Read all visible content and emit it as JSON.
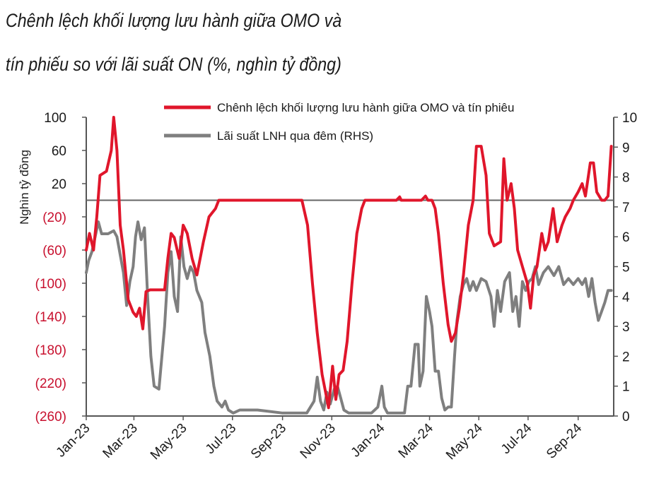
{
  "title_line1": "Chênh lệch khối lượng lưu hành giữa OMO và",
  "title_line2": "tín phiếu so với lãi suất ON (%, nghìn tỷ đồng)",
  "chart_data": {
    "type": "line",
    "ylabel": "Nghìn tỷ đồng",
    "ylim": [
      -260,
      100
    ],
    "y2lim": [
      0,
      10
    ],
    "yticks": [
      "100",
      "60",
      "20",
      "(20)",
      "(60)",
      "(100)",
      "(140)",
      "(180)",
      "(220)",
      "(260)"
    ],
    "ytick_values": [
      100,
      60,
      20,
      -20,
      -60,
      -100,
      -140,
      -180,
      -220,
      -260
    ],
    "y2ticks": [
      "10",
      "9",
      "8",
      "7",
      "6",
      "5",
      "4",
      "3",
      "2",
      "1",
      "0"
    ],
    "y2tick_values": [
      10,
      9,
      8,
      7,
      6,
      5,
      4,
      3,
      2,
      1,
      0
    ],
    "x_range": [
      "2023-01-01",
      "2024-10-15"
    ],
    "xticks": [
      "Jan-23",
      "Mar-23",
      "May-23",
      "Jul-23",
      "Sep-23",
      "Nov-23",
      "Jan-24",
      "Mar-24",
      "May-24",
      "Jul-24",
      "Sep-24"
    ],
    "xtick_dates": [
      "2023-01-01",
      "2023-03-01",
      "2023-05-01",
      "2023-07-01",
      "2023-09-01",
      "2023-11-01",
      "2024-01-01",
      "2024-03-01",
      "2024-05-01",
      "2024-07-01",
      "2024-09-01"
    ],
    "legend_position": "top",
    "grid": false,
    "series": [
      {
        "name": "Chênh lệch khối lượng lưu hành giữa OMO và tín phiêu",
        "axis": "left",
        "color": "#e0162b",
        "points": [
          [
            "2023-01-01",
            -60
          ],
          [
            "2023-01-05",
            -40
          ],
          [
            "2023-01-10",
            -60
          ],
          [
            "2023-01-14",
            -20
          ],
          [
            "2023-01-18",
            30
          ],
          [
            "2023-01-26",
            35
          ],
          [
            "2023-02-01",
            60
          ],
          [
            "2023-02-04",
            100
          ],
          [
            "2023-02-08",
            60
          ],
          [
            "2023-02-12",
            -30
          ],
          [
            "2023-02-16",
            -60
          ],
          [
            "2023-02-22",
            -120
          ],
          [
            "2023-02-28",
            -135
          ],
          [
            "2023-03-04",
            -140
          ],
          [
            "2023-03-08",
            -130
          ],
          [
            "2023-03-12",
            -155
          ],
          [
            "2023-03-16",
            -110
          ],
          [
            "2023-03-21",
            -108
          ],
          [
            "2023-04-01",
            -108
          ],
          [
            "2023-04-08",
            -108
          ],
          [
            "2023-04-12",
            -70
          ],
          [
            "2023-04-16",
            -40
          ],
          [
            "2023-04-20",
            -45
          ],
          [
            "2023-04-26",
            -70
          ],
          [
            "2023-05-01",
            -30
          ],
          [
            "2023-05-06",
            -40
          ],
          [
            "2023-05-12",
            -70
          ],
          [
            "2023-05-18",
            -90
          ],
          [
            "2023-05-26",
            -50
          ],
          [
            "2023-06-02",
            -20
          ],
          [
            "2023-06-10",
            -10
          ],
          [
            "2023-06-14",
            0
          ],
          [
            "2023-07-01",
            0
          ],
          [
            "2023-08-01",
            0
          ],
          [
            "2023-09-01",
            0
          ],
          [
            "2023-09-25",
            0
          ],
          [
            "2023-10-02",
            -30
          ],
          [
            "2023-10-08",
            -100
          ],
          [
            "2023-10-14",
            -160
          ],
          [
            "2023-10-20",
            -210
          ],
          [
            "2023-10-24",
            -230
          ],
          [
            "2023-10-28",
            -250
          ],
          [
            "2023-11-02",
            -200
          ],
          [
            "2023-11-06",
            -240
          ],
          [
            "2023-11-10",
            -210
          ],
          [
            "2023-11-15",
            -205
          ],
          [
            "2023-11-20",
            -170
          ],
          [
            "2023-11-26",
            -100
          ],
          [
            "2023-12-02",
            -40
          ],
          [
            "2023-12-08",
            -10
          ],
          [
            "2023-12-12",
            0
          ],
          [
            "2024-01-01",
            0
          ],
          [
            "2024-01-20",
            0
          ],
          [
            "2024-01-24",
            4
          ],
          [
            "2024-01-26",
            0
          ],
          [
            "2024-02-10",
            0
          ],
          [
            "2024-02-20",
            0
          ],
          [
            "2024-02-25",
            5
          ],
          [
            "2024-02-28",
            0
          ],
          [
            "2024-03-04",
            0
          ],
          [
            "2024-03-08",
            -10
          ],
          [
            "2024-03-12",
            -40
          ],
          [
            "2024-03-18",
            -100
          ],
          [
            "2024-03-24",
            -150
          ],
          [
            "2024-03-28",
            -170
          ],
          [
            "2024-04-02",
            -160
          ],
          [
            "2024-04-07",
            -130
          ],
          [
            "2024-04-12",
            -90
          ],
          [
            "2024-04-18",
            -30
          ],
          [
            "2024-04-24",
            0
          ],
          [
            "2024-04-28",
            65
          ],
          [
            "2024-05-04",
            65
          ],
          [
            "2024-05-10",
            30
          ],
          [
            "2024-05-14",
            -40
          ],
          [
            "2024-05-20",
            -55
          ],
          [
            "2024-05-28",
            -50
          ],
          [
            "2024-06-01",
            50
          ],
          [
            "2024-06-05",
            0
          ],
          [
            "2024-06-10",
            20
          ],
          [
            "2024-06-14",
            -10
          ],
          [
            "2024-06-18",
            -60
          ],
          [
            "2024-06-24",
            -80
          ],
          [
            "2024-06-30",
            -100
          ],
          [
            "2024-07-04",
            -130
          ],
          [
            "2024-07-08",
            -90
          ],
          [
            "2024-07-12",
            -80
          ],
          [
            "2024-07-18",
            -40
          ],
          [
            "2024-07-22",
            -60
          ],
          [
            "2024-07-26",
            -50
          ],
          [
            "2024-08-01",
            -10
          ],
          [
            "2024-08-06",
            -50
          ],
          [
            "2024-08-12",
            -30
          ],
          [
            "2024-08-16",
            -20
          ],
          [
            "2024-08-22",
            -10
          ],
          [
            "2024-08-26",
            0
          ],
          [
            "2024-09-01",
            10
          ],
          [
            "2024-09-06",
            20
          ],
          [
            "2024-09-10",
            5
          ],
          [
            "2024-09-16",
            45
          ],
          [
            "2024-09-20",
            45
          ],
          [
            "2024-09-24",
            10
          ],
          [
            "2024-09-30",
            0
          ],
          [
            "2024-10-04",
            0
          ],
          [
            "2024-10-08",
            5
          ],
          [
            "2024-10-12",
            65
          ]
        ]
      },
      {
        "name": "Lãi suất LNH qua đêm (RHS)",
        "axis": "right",
        "color": "#7f7f7f",
        "points": [
          [
            "2023-01-01",
            4.8
          ],
          [
            "2023-01-04",
            5.2
          ],
          [
            "2023-01-08",
            5.5
          ],
          [
            "2023-01-12",
            6.0
          ],
          [
            "2023-01-16",
            6.5
          ],
          [
            "2023-01-20",
            6.1
          ],
          [
            "2023-01-28",
            6.1
          ],
          [
            "2023-02-04",
            6.2
          ],
          [
            "2023-02-08",
            6.0
          ],
          [
            "2023-02-12",
            5.4
          ],
          [
            "2023-02-16",
            4.8
          ],
          [
            "2023-02-20",
            3.7
          ],
          [
            "2023-02-24",
            4.5
          ],
          [
            "2023-02-28",
            5.0
          ],
          [
            "2023-03-03",
            6.0
          ],
          [
            "2023-03-06",
            6.5
          ],
          [
            "2023-03-10",
            5.9
          ],
          [
            "2023-03-14",
            6.3
          ],
          [
            "2023-03-18",
            4.0
          ],
          [
            "2023-03-22",
            2.0
          ],
          [
            "2023-03-26",
            1.0
          ],
          [
            "2023-04-01",
            0.9
          ],
          [
            "2023-04-08",
            3.0
          ],
          [
            "2023-04-12",
            4.8
          ],
          [
            "2023-04-16",
            5.5
          ],
          [
            "2023-04-20",
            4.0
          ],
          [
            "2023-04-24",
            3.5
          ],
          [
            "2023-04-28",
            6.0
          ],
          [
            "2023-05-02",
            5.0
          ],
          [
            "2023-05-06",
            4.6
          ],
          [
            "2023-05-10",
            5.0
          ],
          [
            "2023-05-14",
            4.8
          ],
          [
            "2023-05-18",
            4.2
          ],
          [
            "2023-05-24",
            3.8
          ],
          [
            "2023-05-28",
            2.8
          ],
          [
            "2023-06-03",
            2.0
          ],
          [
            "2023-06-08",
            1.0
          ],
          [
            "2023-06-12",
            0.5
          ],
          [
            "2023-06-18",
            0.3
          ],
          [
            "2023-06-22",
            0.5
          ],
          [
            "2023-06-26",
            0.2
          ],
          [
            "2023-07-02",
            0.1
          ],
          [
            "2023-07-10",
            0.2
          ],
          [
            "2023-08-01",
            0.2
          ],
          [
            "2023-09-01",
            0.1
          ],
          [
            "2023-10-01",
            0.1
          ],
          [
            "2023-10-10",
            0.5
          ],
          [
            "2023-10-14",
            1.3
          ],
          [
            "2023-10-18",
            0.5
          ],
          [
            "2023-10-22",
            0.2
          ],
          [
            "2023-10-26",
            0.8
          ],
          [
            "2023-10-30",
            0.4
          ],
          [
            "2023-11-04",
            0.9
          ],
          [
            "2023-11-08",
            1.0
          ],
          [
            "2023-11-12",
            0.6
          ],
          [
            "2023-11-16",
            0.2
          ],
          [
            "2023-11-22",
            0.1
          ],
          [
            "2023-12-01",
            0.1
          ],
          [
            "2023-12-20",
            0.1
          ],
          [
            "2023-12-28",
            0.3
          ],
          [
            "2024-01-02",
            1.0
          ],
          [
            "2024-01-05",
            0.3
          ],
          [
            "2024-01-09",
            0.1
          ],
          [
            "2024-01-30",
            0.1
          ],
          [
            "2024-02-03",
            1.0
          ],
          [
            "2024-02-07",
            1.0
          ],
          [
            "2024-02-12",
            2.4
          ],
          [
            "2024-02-16",
            2.4
          ],
          [
            "2024-02-18",
            1.0
          ],
          [
            "2024-02-22",
            1.5
          ],
          [
            "2024-02-26",
            4.0
          ],
          [
            "2024-03-01",
            3.5
          ],
          [
            "2024-03-04",
            3.0
          ],
          [
            "2024-03-08",
            1.5
          ],
          [
            "2024-03-12",
            1.5
          ],
          [
            "2024-03-16",
            0.6
          ],
          [
            "2024-03-20",
            0.2
          ],
          [
            "2024-03-24",
            0.3
          ],
          [
            "2024-03-28",
            0.3
          ],
          [
            "2024-04-01",
            2.0
          ],
          [
            "2024-04-04",
            3.2
          ],
          [
            "2024-04-08",
            4.0
          ],
          [
            "2024-04-12",
            4.4
          ],
          [
            "2024-04-16",
            4.6
          ],
          [
            "2024-04-20",
            4.2
          ],
          [
            "2024-04-24",
            4.5
          ],
          [
            "2024-04-28",
            4.2
          ],
          [
            "2024-05-04",
            4.6
          ],
          [
            "2024-05-10",
            4.5
          ],
          [
            "2024-05-16",
            4.0
          ],
          [
            "2024-05-20",
            3.0
          ],
          [
            "2024-05-24",
            4.2
          ],
          [
            "2024-05-28",
            3.5
          ],
          [
            "2024-06-02",
            4.5
          ],
          [
            "2024-06-08",
            4.8
          ],
          [
            "2024-06-12",
            3.5
          ],
          [
            "2024-06-16",
            4.0
          ],
          [
            "2024-06-20",
            3.0
          ],
          [
            "2024-06-24",
            4.5
          ],
          [
            "2024-06-28",
            4.2
          ],
          [
            "2024-07-02",
            4.5
          ],
          [
            "2024-07-06",
            4.6
          ],
          [
            "2024-07-10",
            5.0
          ],
          [
            "2024-07-14",
            4.4
          ],
          [
            "2024-07-20",
            4.8
          ],
          [
            "2024-07-26",
            5.0
          ],
          [
            "2024-08-02",
            4.7
          ],
          [
            "2024-08-08",
            5.0
          ],
          [
            "2024-08-14",
            4.4
          ],
          [
            "2024-08-20",
            4.6
          ],
          [
            "2024-08-26",
            4.4
          ],
          [
            "2024-09-01",
            4.6
          ],
          [
            "2024-09-06",
            4.4
          ],
          [
            "2024-09-10",
            4.6
          ],
          [
            "2024-09-14",
            4.0
          ],
          [
            "2024-09-18",
            4.6
          ],
          [
            "2024-09-22",
            3.8
          ],
          [
            "2024-09-26",
            3.2
          ],
          [
            "2024-09-30",
            3.5
          ],
          [
            "2024-10-04",
            3.8
          ],
          [
            "2024-10-08",
            4.2
          ],
          [
            "2024-10-12",
            4.2
          ]
        ]
      }
    ]
  }
}
